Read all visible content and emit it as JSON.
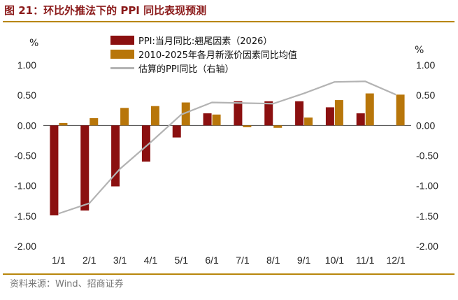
{
  "title": "图 21：环比外推法下的 PPI 同比表现预测",
  "source": "资料来源：Wind、招商证券",
  "units": {
    "left": "%",
    "right": "%"
  },
  "colors": {
    "series1": "#8b1010",
    "series2": "#b8760a",
    "series3": "#b3b3b3",
    "accent": "#8b1a1a",
    "rule": "#b8860b"
  },
  "chart_data": {
    "type": "bar",
    "categories": [
      "1/1",
      "2/1",
      "3/1",
      "4/1",
      "5/1",
      "6/1",
      "7/1",
      "8/1",
      "9/1",
      "10/1",
      "11/1",
      "12/1"
    ],
    "ylim_left": [
      -2.0,
      1.0
    ],
    "ylim_right": [
      -2.0,
      1.0
    ],
    "left_ticks": [
      "1.00",
      "0.50",
      "0.00",
      "-0.50",
      "-1.00",
      "-1.50",
      "-2.00"
    ],
    "right_ticks": [
      "1.00",
      "0.50",
      "0.00",
      "-0.50",
      "-1.00",
      "-1.50",
      "-2.00"
    ],
    "tick_values": [
      1.0,
      0.5,
      0.0,
      -0.5,
      -1.0,
      -1.5,
      -2.0
    ],
    "legend_position": "top-left",
    "series": [
      {
        "name": "PPI:当月同比:翘尾因素（2026）",
        "type": "bar",
        "axis": "left",
        "values": [
          -1.49,
          -1.41,
          -1.01,
          -0.6,
          -0.2,
          0.2,
          0.4,
          0.4,
          0.4,
          0.3,
          0.2,
          null
        ]
      },
      {
        "name": "2010-2025年各月新涨价因素同比均值",
        "type": "bar",
        "axis": "left",
        "values": [
          0.04,
          0.12,
          0.29,
          0.32,
          0.38,
          0.18,
          -0.03,
          -0.04,
          0.13,
          0.42,
          0.53,
          0.51
        ]
      },
      {
        "name": "估算的PPI同比（右轴）",
        "type": "line",
        "axis": "right",
        "values": [
          -1.46,
          -1.29,
          -0.72,
          -0.28,
          0.18,
          0.38,
          0.37,
          0.36,
          0.53,
          0.72,
          0.73,
          0.51
        ]
      }
    ]
  }
}
